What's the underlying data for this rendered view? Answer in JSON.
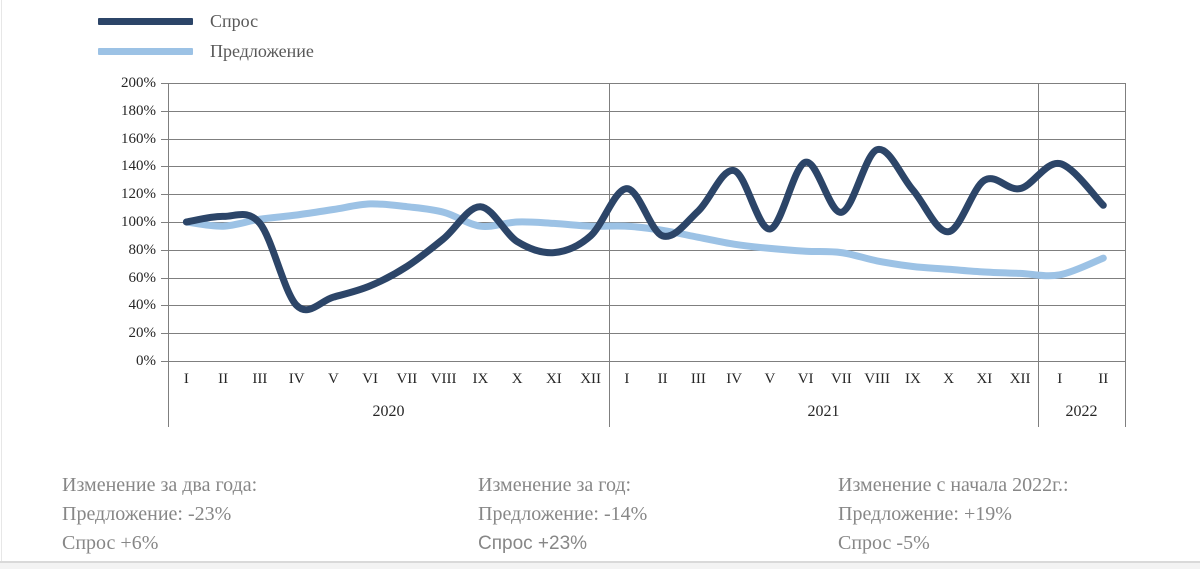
{
  "legend": {
    "items": [
      {
        "label": "Спрос",
        "color": "#2c4568"
      },
      {
        "label": "Предложение",
        "color": "#9cc2e5"
      }
    ]
  },
  "chart_data": {
    "type": "line",
    "title": "",
    "xlabel": "",
    "ylabel": "",
    "ylim": [
      0,
      200
    ],
    "grid": true,
    "legend_position": "top-left",
    "y_ticks": [
      "200%",
      "180%",
      "160%",
      "140%",
      "120%",
      "100%",
      "80%",
      "60%",
      "40%",
      "20%",
      "0%"
    ],
    "x_groups": [
      {
        "year": "2020",
        "months": [
          "I",
          "II",
          "III",
          "IV",
          "V",
          "VI",
          "VII",
          "VIII",
          "IX",
          "X",
          "XI",
          "XII"
        ]
      },
      {
        "year": "2021",
        "months": [
          "I",
          "II",
          "III",
          "IV",
          "V",
          "VI",
          "VII",
          "VIII",
          "IX",
          "X",
          "XI",
          "XII"
        ]
      },
      {
        "year": "2022",
        "months": [
          "I",
          "II"
        ]
      }
    ],
    "series": [
      {
        "name": "Спрос",
        "color": "#2c4568",
        "values": [
          100,
          104,
          99,
          40,
          46,
          54,
          68,
          88,
          111,
          86,
          78,
          90,
          124,
          90,
          108,
          137,
          95,
          143,
          107,
          152,
          123,
          93,
          130,
          124,
          142,
          112
        ]
      },
      {
        "name": "Предложение",
        "color": "#9cc2e5",
        "values": [
          100,
          97,
          102,
          105,
          109,
          113,
          111,
          107,
          97,
          100,
          99,
          97,
          97,
          94,
          89,
          84,
          81,
          79,
          78,
          72,
          68,
          66,
          64,
          63,
          62,
          74
        ]
      }
    ]
  },
  "annotations": [
    {
      "title": "Изменение за два года:",
      "lines": [
        "Предложение: -23%",
        "Спрос +6%"
      ]
    },
    {
      "title": "Изменение за год:",
      "lines": [
        "Предложение: -14%",
        "Спрос +23%"
      ]
    },
    {
      "title": "Изменение с начала 2022г.:",
      "lines": [
        "Предложение: +19%",
        "Спрос -5%"
      ]
    }
  ]
}
